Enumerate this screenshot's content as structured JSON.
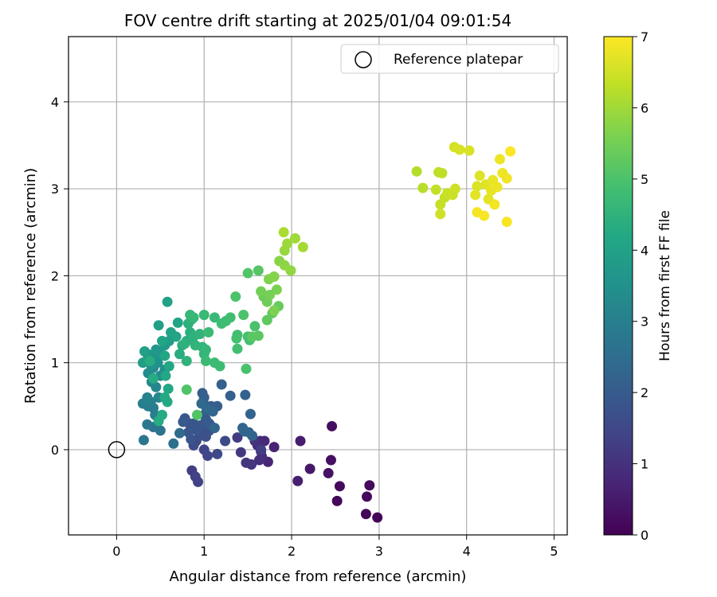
{
  "chart_data": {
    "type": "scatter",
    "title": "FOV centre drift starting at 2025/01/04 09:01:54",
    "xlabel": "Angular distance from reference (arcmin)",
    "ylabel": "Rotation from reference (arcmin)",
    "xlim": [
      -0.55,
      5.15
    ],
    "ylim": [
      -0.98,
      4.75
    ],
    "xticks": [
      "0",
      "1",
      "2",
      "3",
      "4",
      "5"
    ],
    "yticks": [
      "0",
      "1",
      "2",
      "3",
      "4"
    ],
    "xtick_values": [
      0,
      1,
      2,
      3,
      4,
      5
    ],
    "ytick_values": [
      0,
      1,
      2,
      3,
      4
    ],
    "grid": true,
    "legend": {
      "position": "top-right",
      "entries": [
        {
          "label": "Reference platepar",
          "marker": "open-circle",
          "x": 0,
          "y": 0
        }
      ]
    },
    "colorbar": {
      "label": "Hours from first FF file",
      "range": [
        0,
        7
      ],
      "ticks": [
        "0",
        "1",
        "2",
        "3",
        "4",
        "5",
        "6",
        "7"
      ],
      "tick_values": [
        0,
        1,
        2,
        3,
        4,
        5,
        6,
        7
      ],
      "colormap": "viridis"
    },
    "points": [
      [
        2.98,
        -0.78,
        0.05
      ],
      [
        2.85,
        -0.74,
        0.08
      ],
      [
        2.52,
        -0.59,
        0.12
      ],
      [
        2.86,
        -0.54,
        0.15
      ],
      [
        2.55,
        -0.42,
        0.18
      ],
      [
        2.89,
        -0.41,
        0.22
      ],
      [
        2.46,
        0.27,
        0.25
      ],
      [
        2.45,
        -0.12,
        0.3
      ],
      [
        2.42,
        -0.27,
        0.35
      ],
      [
        2.21,
        -0.22,
        0.45
      ],
      [
        2.1,
        0.1,
        0.55
      ],
      [
        2.07,
        -0.36,
        0.6
      ],
      [
        1.8,
        0.03,
        0.7
      ],
      [
        1.73,
        -0.14,
        0.75
      ],
      [
        1.69,
        0.1,
        0.8
      ],
      [
        1.64,
        0.1,
        0.82
      ],
      [
        1.61,
        0.05,
        0.85
      ],
      [
        1.65,
        -0.02,
        0.87
      ],
      [
        1.66,
        -0.08,
        0.9
      ],
      [
        1.63,
        -0.12,
        0.95
      ],
      [
        1.58,
        0.1,
        1.0
      ],
      [
        1.54,
        -0.17,
        1.05
      ],
      [
        1.48,
        -0.15,
        1.1
      ],
      [
        1.42,
        -0.03,
        1.15
      ],
      [
        1.38,
        0.14,
        1.2
      ],
      [
        1.65,
        0.0,
        1.25
      ],
      [
        0.86,
        -0.24,
        1.3
      ],
      [
        0.93,
        -0.37,
        1.35
      ],
      [
        0.9,
        -0.31,
        1.38
      ],
      [
        1.0,
        0.0,
        1.4
      ],
      [
        1.04,
        -0.07,
        1.45
      ],
      [
        1.15,
        -0.05,
        1.5
      ],
      [
        1.24,
        0.1,
        1.55
      ],
      [
        0.88,
        0.05,
        1.6
      ],
      [
        0.91,
        0.1,
        1.62
      ],
      [
        0.95,
        0.16,
        1.65
      ],
      [
        0.98,
        0.2,
        1.68
      ],
      [
        1.02,
        0.15,
        1.7
      ],
      [
        1.06,
        0.22,
        1.72
      ],
      [
        1.08,
        0.27,
        1.75
      ],
      [
        0.86,
        0.25,
        1.78
      ],
      [
        0.85,
        0.12,
        1.8
      ],
      [
        0.83,
        0.3,
        1.82
      ],
      [
        0.88,
        0.3,
        1.84
      ],
      [
        0.92,
        0.22,
        1.86
      ],
      [
        0.96,
        0.28,
        1.88
      ],
      [
        0.82,
        0.2,
        1.9
      ],
      [
        0.78,
        0.36,
        1.92
      ],
      [
        0.76,
        0.32,
        1.94
      ],
      [
        1.0,
        0.4,
        1.96
      ],
      [
        1.02,
        0.35,
        1.98
      ],
      [
        1.06,
        0.3,
        2.0
      ],
      [
        1.1,
        0.45,
        2.02
      ],
      [
        1.15,
        0.5,
        2.04
      ],
      [
        1.08,
        0.5,
        2.06
      ],
      [
        0.99,
        0.55,
        2.08
      ],
      [
        0.98,
        0.65,
        2.1
      ],
      [
        1.0,
        0.6,
        2.12
      ],
      [
        1.2,
        0.75,
        2.14
      ],
      [
        1.3,
        0.62,
        2.16
      ],
      [
        1.47,
        0.63,
        2.18
      ],
      [
        1.53,
        0.41,
        2.2
      ],
      [
        1.44,
        0.25,
        2.22
      ],
      [
        1.51,
        0.2,
        2.24
      ],
      [
        1.55,
        0.16,
        2.26
      ],
      [
        1.46,
        0.21,
        2.28
      ],
      [
        1.12,
        0.25,
        2.3
      ],
      [
        1.1,
        0.44,
        2.32
      ],
      [
        1.03,
        0.47,
        2.35
      ],
      [
        0.97,
        0.53,
        2.38
      ],
      [
        0.72,
        0.19,
        2.45
      ],
      [
        0.65,
        0.07,
        2.55
      ],
      [
        0.5,
        0.22,
        2.65
      ],
      [
        0.42,
        0.26,
        2.7
      ],
      [
        0.31,
        0.11,
        2.75
      ],
      [
        0.35,
        0.29,
        2.8
      ],
      [
        0.36,
        0.5,
        2.85
      ],
      [
        0.42,
        0.48,
        2.9
      ],
      [
        0.3,
        0.53,
        2.95
      ],
      [
        0.44,
        0.4,
        3.0
      ],
      [
        0.39,
        0.55,
        3.05
      ],
      [
        0.35,
        0.6,
        3.1
      ],
      [
        0.48,
        0.6,
        3.15
      ],
      [
        0.45,
        0.72,
        3.2
      ],
      [
        0.4,
        0.78,
        3.25
      ],
      [
        0.5,
        0.85,
        3.3
      ],
      [
        0.36,
        0.88,
        3.35
      ],
      [
        0.42,
        0.94,
        3.4
      ],
      [
        0.55,
        0.92,
        3.45
      ],
      [
        0.47,
        1.0,
        3.5
      ],
      [
        0.39,
        0.98,
        3.55
      ],
      [
        0.41,
        1.07,
        3.6
      ],
      [
        0.5,
        1.1,
        3.65
      ],
      [
        0.45,
        1.15,
        3.7
      ],
      [
        0.35,
        1.1,
        3.75
      ],
      [
        0.55,
        1.2,
        3.8
      ],
      [
        0.6,
        1.25,
        3.85
      ],
      [
        0.3,
        1.0,
        3.9
      ],
      [
        0.32,
        1.13,
        3.92
      ],
      [
        0.48,
        1.43,
        3.95
      ],
      [
        0.58,
        1.7,
        4.0
      ],
      [
        0.62,
        1.35,
        4.05
      ],
      [
        0.68,
        1.3,
        4.08
      ],
      [
        0.7,
        1.46,
        4.1
      ],
      [
        0.52,
        1.25,
        4.12
      ],
      [
        0.55,
        1.08,
        4.14
      ],
      [
        0.6,
        0.96,
        4.16
      ],
      [
        0.56,
        0.85,
        4.18
      ],
      [
        0.59,
        0.7,
        4.2
      ],
      [
        0.55,
        0.6,
        4.22
      ],
      [
        0.58,
        0.55,
        4.24
      ],
      [
        0.52,
        0.4,
        4.26
      ],
      [
        0.48,
        0.33,
        4.28
      ],
      [
        0.42,
        0.82,
        4.3
      ],
      [
        0.38,
        1.02,
        4.32
      ],
      [
        0.72,
        1.1,
        4.34
      ],
      [
        0.75,
        1.2,
        4.36
      ],
      [
        0.8,
        1.25,
        4.38
      ],
      [
        0.84,
        1.35,
        4.4
      ],
      [
        0.86,
        1.5,
        4.42
      ],
      [
        0.82,
        1.45,
        4.44
      ],
      [
        0.88,
        1.3,
        4.46
      ],
      [
        0.78,
        1.22,
        4.48
      ],
      [
        0.8,
        1.02,
        4.5
      ],
      [
        0.9,
        1.2,
        4.52
      ],
      [
        0.95,
        1.33,
        4.54
      ],
      [
        0.98,
        1.18,
        4.56
      ],
      [
        1.0,
        1.1,
        4.6
      ],
      [
        1.02,
        1.15,
        4.62
      ],
      [
        0.84,
        1.55,
        4.64
      ],
      [
        0.88,
        1.52,
        4.66
      ],
      [
        1.0,
        1.55,
        4.68
      ],
      [
        1.12,
        1.52,
        4.7
      ],
      [
        1.05,
        1.35,
        4.72
      ],
      [
        1.02,
        1.02,
        4.74
      ],
      [
        1.12,
        1.0,
        4.76
      ],
      [
        1.18,
        0.96,
        4.78
      ],
      [
        1.2,
        1.45,
        4.8
      ],
      [
        1.25,
        1.48,
        4.82
      ],
      [
        1.3,
        1.52,
        4.84
      ],
      [
        1.38,
        1.32,
        4.86
      ],
      [
        1.38,
        1.16,
        4.88
      ],
      [
        1.37,
        1.28,
        4.9
      ],
      [
        1.5,
        1.3,
        4.92
      ],
      [
        1.52,
        1.26,
        4.94
      ],
      [
        1.48,
        0.93,
        4.96
      ],
      [
        1.58,
        1.42,
        4.98
      ],
      [
        1.45,
        1.55,
        5.0
      ],
      [
        1.36,
        1.76,
        5.02
      ],
      [
        0.8,
        0.69,
        5.05
      ],
      [
        0.92,
        0.4,
        5.08
      ],
      [
        1.5,
        2.03,
        5.1
      ],
      [
        1.62,
        2.06,
        5.15
      ],
      [
        1.55,
        1.3,
        5.18
      ],
      [
        1.62,
        1.31,
        5.2
      ],
      [
        1.72,
        1.49,
        5.25
      ],
      [
        1.78,
        1.57,
        5.3
      ],
      [
        1.85,
        1.65,
        5.35
      ],
      [
        1.68,
        1.76,
        5.4
      ],
      [
        1.72,
        1.7,
        5.45
      ],
      [
        1.65,
        1.82,
        5.5
      ],
      [
        1.75,
        1.78,
        5.55
      ],
      [
        1.83,
        1.84,
        5.6
      ],
      [
        1.8,
        1.6,
        5.62
      ],
      [
        1.74,
        1.96,
        5.65
      ],
      [
        1.8,
        1.99,
        5.7
      ],
      [
        1.86,
        2.17,
        5.75
      ],
      [
        1.92,
        2.12,
        5.8
      ],
      [
        1.99,
        2.06,
        5.85
      ],
      [
        1.92,
        2.29,
        5.9
      ],
      [
        1.95,
        2.37,
        5.95
      ],
      [
        2.04,
        2.43,
        6.0
      ],
      [
        2.13,
        2.33,
        6.05
      ],
      [
        1.91,
        2.5,
        6.1
      ],
      [
        3.43,
        3.2,
        6.2
      ],
      [
        3.5,
        3.01,
        6.25
      ],
      [
        3.68,
        3.19,
        6.3
      ],
      [
        3.72,
        3.18,
        6.32
      ],
      [
        3.65,
        2.99,
        6.35
      ],
      [
        3.75,
        2.9,
        6.38
      ],
      [
        3.7,
        2.82,
        6.4
      ],
      [
        3.78,
        2.95,
        6.42
      ],
      [
        3.84,
        2.93,
        6.45
      ],
      [
        3.87,
        3.0,
        6.48
      ],
      [
        3.7,
        2.71,
        6.5
      ],
      [
        3.86,
        3.48,
        6.55
      ],
      [
        3.92,
        3.45,
        6.58
      ],
      [
        4.03,
        3.44,
        6.6
      ],
      [
        4.12,
        3.03,
        6.62
      ],
      [
        4.15,
        3.15,
        6.65
      ],
      [
        4.22,
        3.05,
        6.68
      ],
      [
        4.1,
        2.93,
        6.7
      ],
      [
        4.25,
        2.88,
        6.72
      ],
      [
        4.28,
        2.98,
        6.75
      ],
      [
        4.3,
        3.1,
        6.78
      ],
      [
        4.35,
        3.02,
        6.8
      ],
      [
        4.38,
        3.34,
        6.82
      ],
      [
        4.41,
        3.18,
        6.84
      ],
      [
        4.46,
        3.12,
        6.86
      ],
      [
        4.32,
        2.82,
        6.88
      ],
      [
        4.12,
        2.73,
        6.9
      ],
      [
        4.2,
        2.69,
        6.92
      ],
      [
        4.46,
        2.62,
        6.95
      ],
      [
        4.5,
        3.43,
        6.98
      ]
    ]
  }
}
